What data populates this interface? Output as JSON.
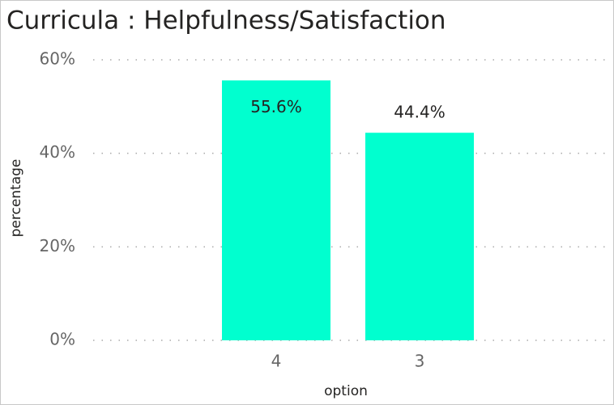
{
  "chart_data": {
    "type": "bar",
    "title": "Curricula : Helpfulness/Satisfaction",
    "x_label": "option",
    "y_label": "percentage",
    "categories": [
      "4",
      "3"
    ],
    "values": [
      55.6,
      44.4
    ],
    "value_labels": [
      "55.6%",
      "44.4%"
    ],
    "color": "#01ffcf",
    "ylim": [
      0,
      60
    ],
    "yticks": [
      {
        "value": 0,
        "label": "0%"
      },
      {
        "value": 20,
        "label": "20%"
      },
      {
        "value": 40,
        "label": "40%"
      },
      {
        "value": 60,
        "label": "60%"
      }
    ],
    "grid": true
  }
}
